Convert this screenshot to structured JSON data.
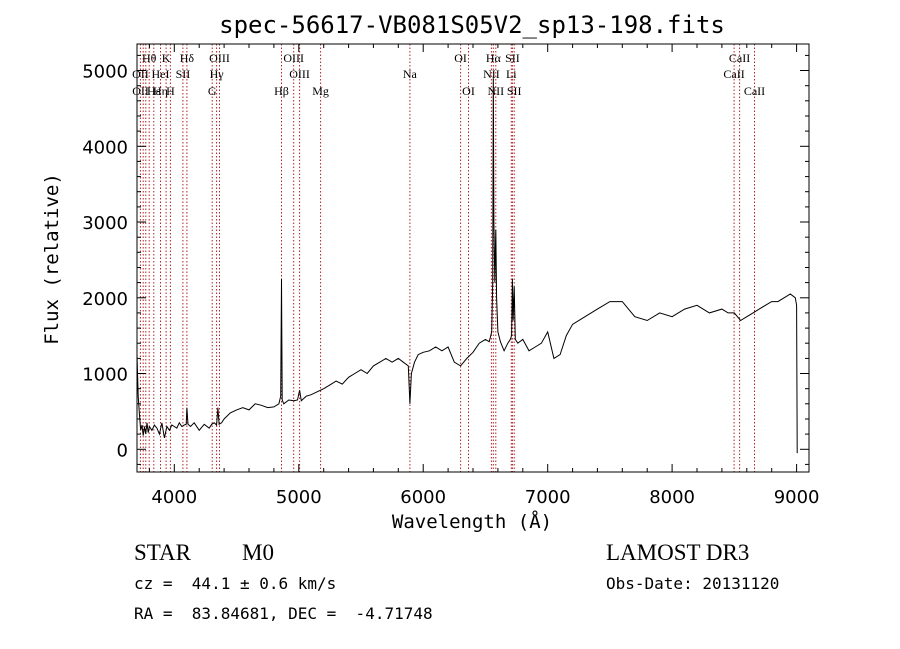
{
  "chart_data": {
    "type": "line",
    "title": "spec-56617-VB081S05V2_sp13-198.fits",
    "xlabel": "Wavelength (Å)",
    "ylabel": "Flux (relative)",
    "xlim": [
      3700,
      9100
    ],
    "ylim": [
      -300,
      5350
    ],
    "x_ticks": [
      4000,
      5000,
      6000,
      7000,
      8000,
      9000
    ],
    "x_tick_labels": [
      "4000",
      "5000",
      "6000",
      "7000",
      "8000",
      "9000"
    ],
    "y_ticks": [
      0,
      1000,
      2000,
      3000,
      4000,
      5000
    ],
    "y_tick_labels": [
      "0",
      "1000",
      "2000",
      "3000",
      "4000",
      "5000"
    ],
    "series": [
      {
        "name": "flux",
        "x": [
          3700,
          3710,
          3720,
          3730,
          3740,
          3750,
          3760,
          3770,
          3780,
          3790,
          3800,
          3820,
          3840,
          3860,
          3880,
          3900,
          3920,
          3940,
          3960,
          3980,
          4000,
          4020,
          4040,
          4060,
          4080,
          4095,
          4101,
          4110,
          4130,
          4160,
          4200,
          4240,
          4280,
          4300,
          4320,
          4340,
          4350,
          4360,
          4380,
          4400,
          4450,
          4500,
          4550,
          4600,
          4650,
          4700,
          4750,
          4800,
          4840,
          4855,
          4861,
          4867,
          4880,
          4920,
          4960,
          4990,
          5007,
          5020,
          5060,
          5100,
          5150,
          5200,
          5250,
          5300,
          5350,
          5400,
          5450,
          5500,
          5550,
          5600,
          5650,
          5700,
          5750,
          5800,
          5840,
          5880,
          5893,
          5905,
          5930,
          5960,
          6000,
          6050,
          6100,
          6150,
          6200,
          6250,
          6300,
          6350,
          6400,
          6450,
          6500,
          6530,
          6550,
          6558,
          6563,
          6568,
          6575,
          6583,
          6590,
          6600,
          6620,
          6650,
          6680,
          6700,
          6710,
          6717,
          6722,
          6731,
          6740,
          6760,
          6800,
          6850,
          6900,
          6950,
          7000,
          7050,
          7100,
          7150,
          7200,
          7300,
          7400,
          7500,
          7600,
          7700,
          7800,
          7900,
          8000,
          8100,
          8200,
          8300,
          8400,
          8450,
          8500,
          8550,
          8600,
          8650,
          8700,
          8750,
          8800,
          8850,
          8900,
          8950,
          8990,
          9000,
          9005
        ],
        "values": [
          1250,
          700,
          450,
          250,
          320,
          180,
          300,
          200,
          350,
          220,
          300,
          250,
          320,
          280,
          200,
          350,
          150,
          300,
          250,
          320,
          300,
          280,
          350,
          300,
          320,
          330,
          550,
          330,
          300,
          350,
          250,
          330,
          280,
          330,
          350,
          320,
          550,
          330,
          350,
          400,
          480,
          520,
          550,
          520,
          600,
          580,
          550,
          560,
          600,
          700,
          2250,
          650,
          600,
          650,
          640,
          650,
          780,
          640,
          700,
          720,
          760,
          800,
          850,
          900,
          860,
          950,
          1000,
          1050,
          1000,
          1100,
          1150,
          1200,
          1150,
          1200,
          1150,
          1100,
          600,
          1000,
          1150,
          1250,
          1280,
          1300,
          1350,
          1300,
          1350,
          1150,
          1100,
          1200,
          1280,
          1400,
          1450,
          1420,
          1550,
          2200,
          4900,
          3000,
          2200,
          2900,
          2000,
          1550,
          1420,
          1300,
          1400,
          1450,
          1500,
          2250,
          1700,
          2150,
          1450,
          1400,
          1450,
          1300,
          1350,
          1400,
          1550,
          1200,
          1250,
          1500,
          1650,
          1750,
          1850,
          1950,
          1950,
          1750,
          1700,
          1800,
          1750,
          1850,
          1900,
          1800,
          1850,
          1800,
          1800,
          1700,
          1750,
          1800,
          1850,
          1900,
          1950,
          1950,
          2000,
          2050,
          2000,
          1900,
          -50
        ]
      }
    ],
    "line_annotations": [
      {
        "label": "Hθ",
        "x": 3798,
        "row": 1
      },
      {
        "label": "OII",
        "x": 3727,
        "row": 2
      },
      {
        "label": "OII",
        "x": 3729,
        "row": 3
      },
      {
        "label": "Hε",
        "x": 3835,
        "row": 3
      },
      {
        "label": "K",
        "x": 3934,
        "row": 1
      },
      {
        "label": "HeI",
        "x": 3889,
        "row": 2
      },
      {
        "label": "Hη",
        "x": 3889,
        "row": 3
      },
      {
        "label": "SII",
        "x": 4069,
        "row": 2
      },
      {
        "label": "H",
        "x": 3968,
        "row": 3
      },
      {
        "label": "Hδ",
        "x": 4101,
        "row": 1
      },
      {
        "label": "OIII",
        "x": 4363,
        "row": 1
      },
      {
        "label": "Hγ",
        "x": 4340,
        "row": 2
      },
      {
        "label": "G",
        "x": 4304,
        "row": 3
      },
      {
        "label": "OIII",
        "x": 4959,
        "row": 1
      },
      {
        "label": "OIII",
        "x": 5007,
        "row": 2
      },
      {
        "label": "Hβ",
        "x": 4861,
        "row": 3
      },
      {
        "label": "Mg",
        "x": 5175,
        "row": 3
      },
      {
        "label": "Na",
        "x": 5893,
        "row": 2
      },
      {
        "label": "OI",
        "x": 6300,
        "row": 1
      },
      {
        "label": "OI",
        "x": 6364,
        "row": 3
      },
      {
        "label": "Hα",
        "x": 6563,
        "row": 1
      },
      {
        "label": "SII",
        "x": 6717,
        "row": 1
      },
      {
        "label": "NII",
        "x": 6548,
        "row": 2
      },
      {
        "label": "Li",
        "x": 6708,
        "row": 2
      },
      {
        "label": "NII",
        "x": 6583,
        "row": 3
      },
      {
        "label": "SII",
        "x": 6731,
        "row": 3
      },
      {
        "label": "CaII",
        "x": 8542,
        "row": 1
      },
      {
        "label": "CaII",
        "x": 8498,
        "row": 2
      },
      {
        "label": "CaII",
        "x": 8662,
        "row": 3
      }
    ],
    "vlines": [
      3727,
      3750,
      3771,
      3798,
      3835,
      3889,
      3934,
      3968,
      4069,
      4101,
      4304,
      4340,
      4363,
      4861,
      4959,
      5007,
      5175,
      5893,
      6300,
      6364,
      6548,
      6563,
      6583,
      6708,
      6717,
      6731,
      8498,
      8542,
      8662
    ],
    "grid": false,
    "legend": "none"
  },
  "info": {
    "class_label": "STAR",
    "subclass_label": "M0",
    "survey": "LAMOST DR3",
    "redshift_text": "cz =  44.1 ± 0.6 km/s",
    "obs_date_text": "Obs-Date: 20131120",
    "coords_text": "RA =  83.84681, DEC =  -4.71748"
  },
  "colors": {
    "line_marker": "#b22222",
    "spectrum": "#000000",
    "axes": "#000000"
  }
}
